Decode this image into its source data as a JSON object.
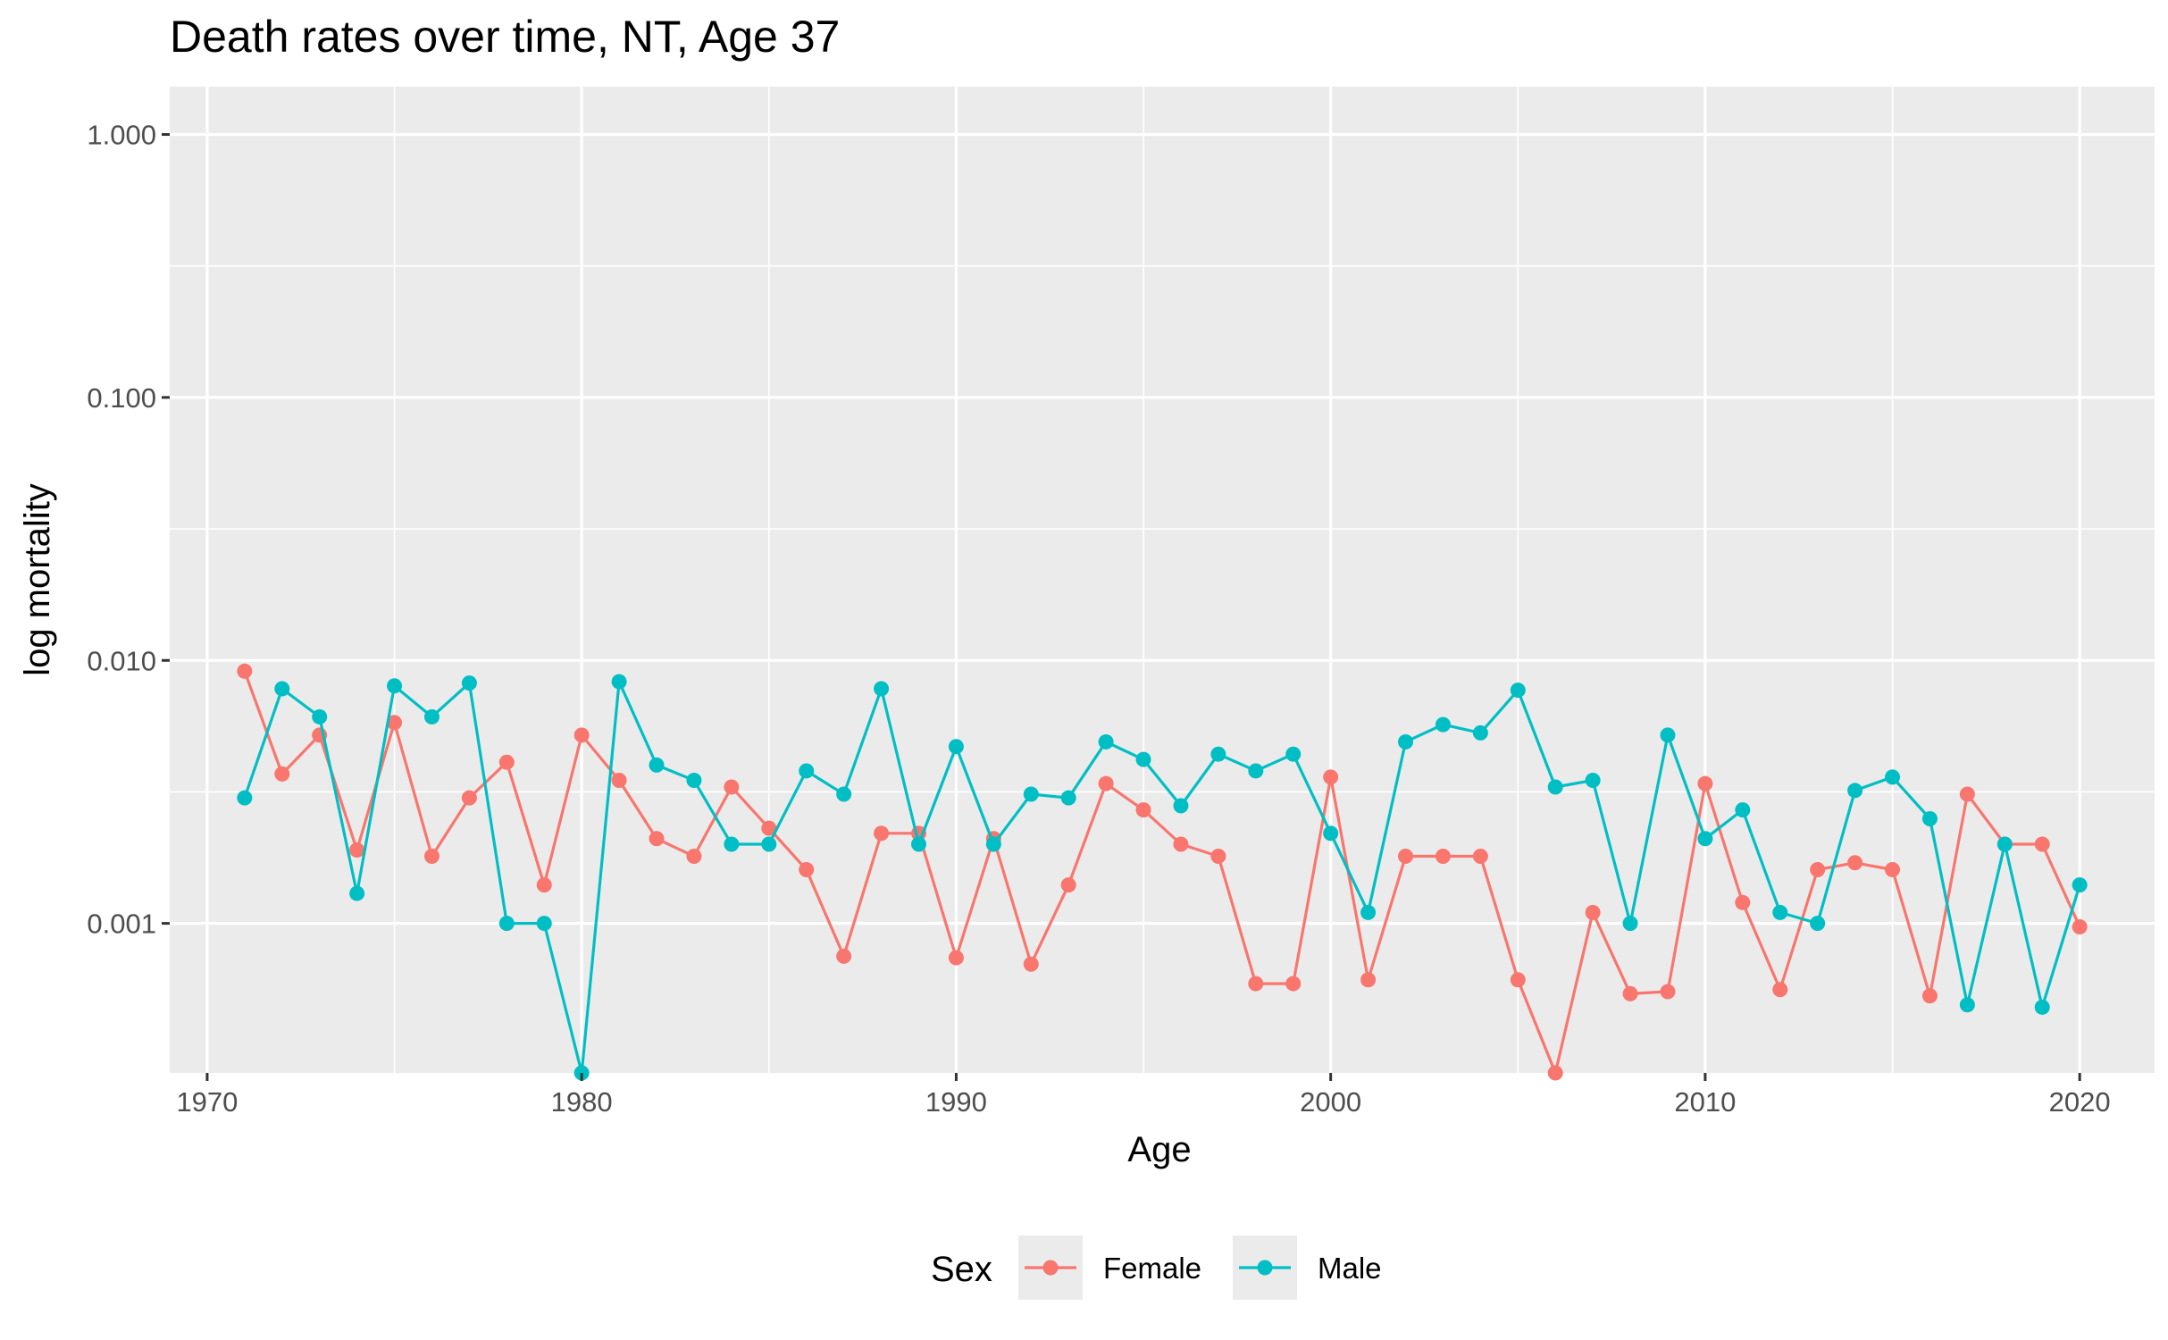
{
  "chart_data": {
    "type": "line",
    "title": "Death rates over time, NT, Age 37",
    "xlabel": "Age",
    "ylabel": "log mortality",
    "yscale": "log",
    "xlim": [
      1969.0,
      2022.0
    ],
    "ylim": [
      0.00027,
      1.52
    ],
    "x_ticks": [
      1970,
      1980,
      1990,
      2000,
      2010,
      2020
    ],
    "x_tick_labels": [
      "1970",
      "1980",
      "1990",
      "2000",
      "2010",
      "2020"
    ],
    "y_ticks": [
      0.001,
      0.01,
      0.1,
      1
    ],
    "y_tick_labels": [
      "0.001",
      "0.010",
      "0.100",
      "1.000"
    ],
    "grid": true,
    "legend": {
      "title": "Sex",
      "position": "bottom"
    },
    "x": [
      1971,
      1972,
      1973,
      1974,
      1975,
      1976,
      1977,
      1978,
      1979,
      1980,
      1981,
      1982,
      1983,
      1984,
      1985,
      1986,
      1987,
      1988,
      1989,
      1990,
      1991,
      1992,
      1993,
      1994,
      1995,
      1996,
      1997,
      1998,
      1999,
      2000,
      2001,
      2002,
      2003,
      2004,
      2005,
      2006,
      2007,
      2008,
      2009,
      2010,
      2011,
      2012,
      2013,
      2014,
      2015,
      2016,
      2017,
      2018,
      2019,
      2020
    ],
    "series": [
      {
        "name": "Female",
        "color": "#F8766D",
        "values": [
          0.0091,
          0.0037,
          0.0052,
          0.0019,
          0.0058,
          0.0018,
          0.003,
          0.0041,
          0.0014,
          0.0052,
          0.0035,
          0.0021,
          0.0018,
          0.0033,
          0.0023,
          0.0016,
          0.00075,
          0.0022,
          0.0022,
          0.00074,
          0.0021,
          0.0007,
          0.0014,
          0.0034,
          0.0027,
          0.002,
          0.0018,
          0.00059,
          0.00059,
          0.0036,
          0.00061,
          0.0018,
          0.0018,
          0.0018,
          0.00061,
          0.00027,
          0.0011,
          0.00054,
          0.00055,
          0.0034,
          0.0012,
          0.00056,
          0.0016,
          0.0017,
          0.0016,
          0.00053,
          0.0031,
          0.002,
          0.002,
          0.00097
        ]
      },
      {
        "name": "Male",
        "color": "#00BFC4",
        "values": [
          0.003,
          0.0078,
          0.0061,
          0.0013,
          0.008,
          0.0061,
          0.0082,
          0.001,
          0.001,
          0.00027,
          0.0083,
          0.004,
          0.0035,
          0.002,
          0.002,
          0.0038,
          0.0031,
          0.0078,
          0.002,
          0.0047,
          0.002,
          0.0031,
          0.003,
          0.0049,
          0.0042,
          0.0028,
          0.0044,
          0.0038,
          0.0044,
          0.0022,
          0.0011,
          0.0049,
          0.0057,
          0.0053,
          0.0077,
          0.0033,
          0.0035,
          0.001,
          0.0052,
          0.0021,
          0.0027,
          0.0011,
          0.001,
          0.0032,
          0.0036,
          0.0025,
          0.00049,
          0.002,
          0.00048,
          0.0014
        ]
      }
    ]
  }
}
